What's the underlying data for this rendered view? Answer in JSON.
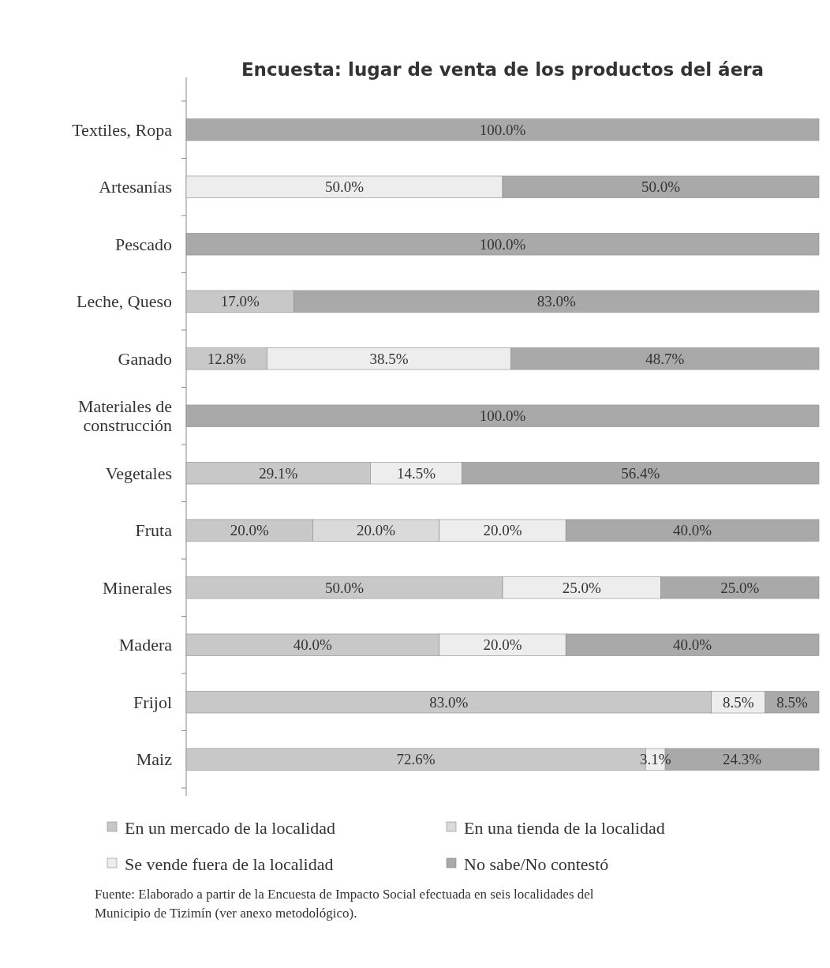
{
  "chart_data": {
    "type": "bar",
    "orientation": "horizontal",
    "stacked": true,
    "title": "Encuesta: lugar de venta de los productos del áera",
    "categories": [
      "Textiles, Ropa",
      "Artesanías",
      "Pescado",
      "Leche, Queso",
      "Ganado",
      "Materiales de construcción",
      "Vegetales",
      "Fruta",
      "Minerales",
      "Madera",
      "Frijol",
      "Maiz"
    ],
    "series": [
      {
        "name": "En un mercado de la localidad",
        "color": "#c8c8c8",
        "values": [
          0,
          0,
          0,
          17.0,
          12.8,
          0,
          29.1,
          20.0,
          50.0,
          40.0,
          83.0,
          72.6
        ],
        "value_labels": [
          null,
          null,
          null,
          "17.0%",
          "12.8%",
          null,
          "29.1%",
          "20.0%",
          "50.0%",
          "40.0%",
          "83.0%",
          "72.6%"
        ]
      },
      {
        "name": "En una tienda de la localidad",
        "color": "#dadada",
        "values": [
          0,
          0,
          0,
          0,
          0,
          0,
          0,
          20.0,
          0,
          0,
          0,
          0
        ],
        "value_labels": [
          null,
          null,
          null,
          null,
          null,
          null,
          null,
          "20.0%",
          null,
          null,
          null,
          null
        ]
      },
      {
        "name": "Se vende fuera de la localidad",
        "color": "#ededed",
        "values": [
          0,
          50.0,
          0,
          0,
          38.5,
          0,
          14.5,
          20.0,
          25.0,
          20.0,
          8.5,
          3.1
        ],
        "value_labels": [
          null,
          "50.0%",
          null,
          null,
          "38.5%",
          null,
          "14.5%",
          "20.0%",
          "25.0%",
          "20.0%",
          "8.5%",
          "3.1%"
        ]
      },
      {
        "name": "No sabe/No contestó",
        "color": "#a9a9a9",
        "values": [
          100.0,
          50.0,
          100.0,
          83.0,
          48.7,
          100.0,
          56.4,
          40.0,
          25.0,
          40.0,
          8.5,
          24.3
        ],
        "value_labels": [
          "100.0%",
          "50.0%",
          "100.0%",
          "83.0%",
          "48.7%",
          "100.0%",
          "56.4%",
          "40.0%",
          "25.0%",
          "40.0%",
          "8.5%",
          "24.3%"
        ]
      }
    ],
    "xlim": [
      0,
      100
    ],
    "tick_labels": "y",
    "legend": "bottom",
    "annotations": [
      "Fuente: Elaborado a partir de la Encuesta de Impacto Social efectuada en seis localidades del Municipio de Tizimín (ver anexo metodológico)."
    ]
  }
}
